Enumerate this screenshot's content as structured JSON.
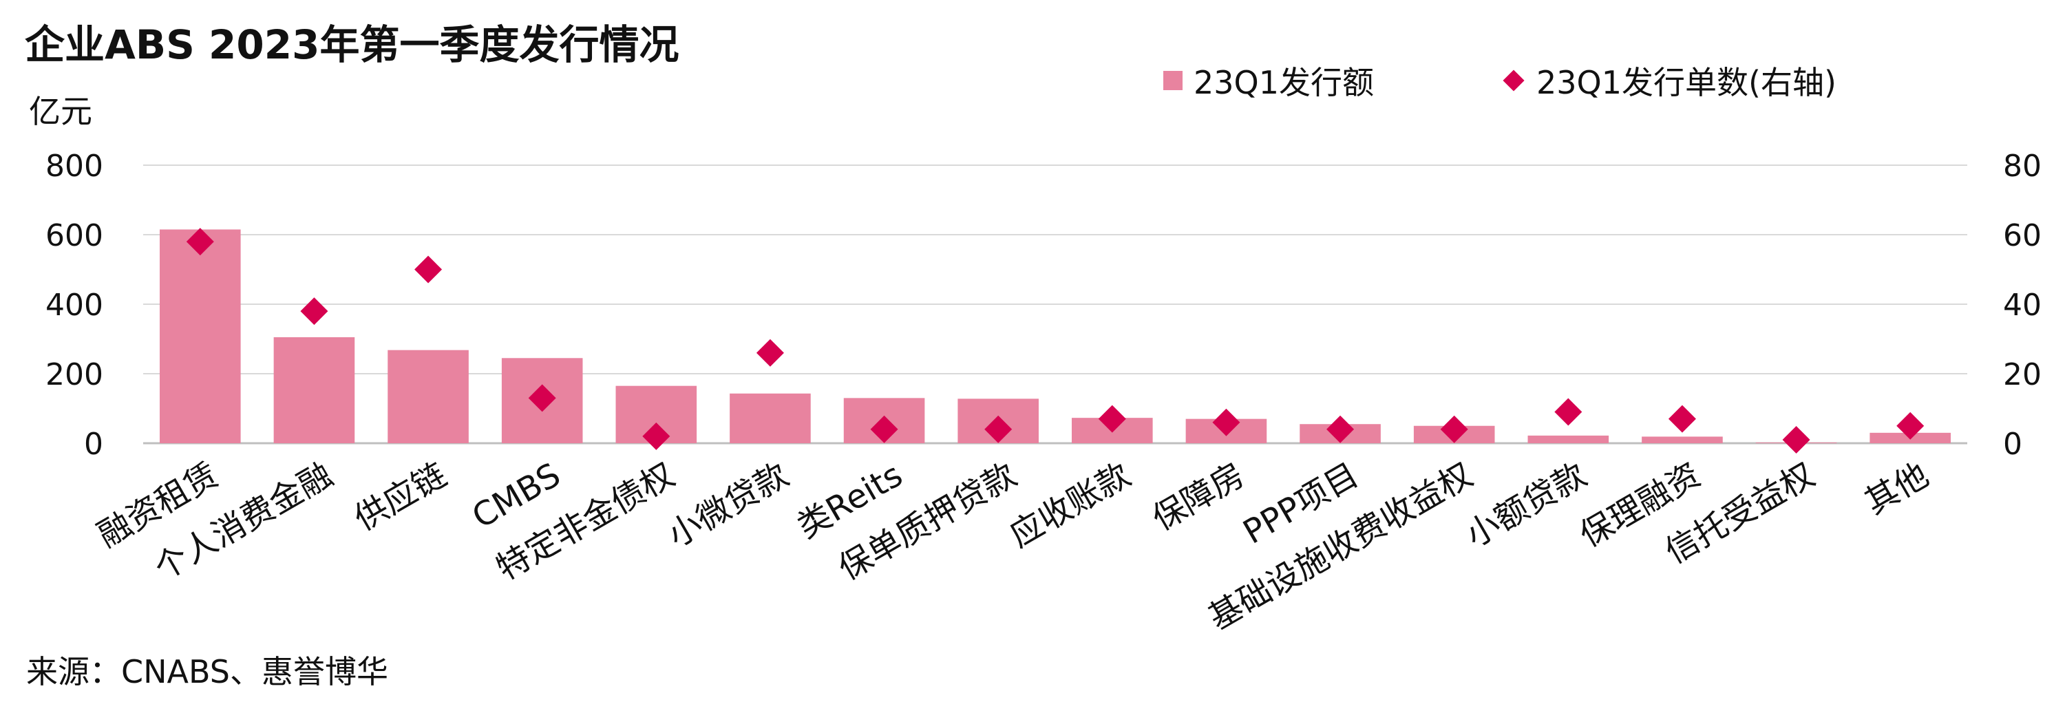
{
  "title": "企业ABS 2023年第一季度发行情况",
  "y_unit": "亿元",
  "source": "来源：CNABS、惠誉博华",
  "colors": {
    "bar": "#e8839f",
    "marker": "#d6004f",
    "grid": "#d9d9d9"
  },
  "chart_data": {
    "type": "bar",
    "categories": [
      "融资租赁",
      "个人消费金融",
      "供应链",
      "CMBS",
      "特定非金债权",
      "小微贷款",
      "类Reits",
      "保单质押贷款",
      "应收账款",
      "保障房",
      "PPP项目",
      "基础设施收费收益权",
      "小额贷款",
      "保理融资",
      "信托受益权",
      "其他"
    ],
    "series": [
      {
        "name": "23Q1发行额",
        "type": "bar",
        "axis": "left",
        "values": [
          615,
          305,
          268,
          245,
          165,
          143,
          130,
          128,
          73,
          70,
          55,
          50,
          22,
          19,
          2,
          30
        ]
      },
      {
        "name": "23Q1发行单数(右轴)",
        "type": "scatter",
        "marker": "diamond",
        "axis": "right",
        "values": [
          58,
          38,
          50,
          13,
          2,
          26,
          4,
          4,
          7,
          6,
          4,
          4,
          9,
          7,
          1,
          5
        ]
      }
    ],
    "ylim_left": [
      0,
      800
    ],
    "ylim_right": [
      0,
      80
    ],
    "yticks_left": [
      "0",
      "200",
      "400",
      "600",
      "800"
    ],
    "yticks_right": [
      "0",
      "20",
      "40",
      "60",
      "80"
    ],
    "grid": true,
    "legend_position": "top-right"
  }
}
